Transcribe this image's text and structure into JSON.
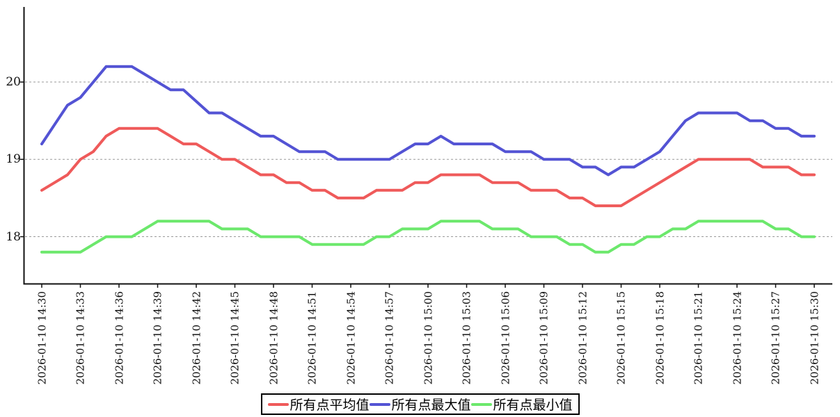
{
  "chart_data": {
    "type": "line",
    "title": "",
    "date": "2026-01-10",
    "grid": "horizontal-dashed",
    "legend_position": "bottom-center",
    "y_ticks": [
      20,
      19,
      18
    ],
    "ylim": [
      17.4,
      21.0
    ],
    "x_times": [
      "14:30",
      "14:31",
      "14:32",
      "14:33",
      "14:34",
      "14:35",
      "14:36",
      "14:37",
      "14:38",
      "14:39",
      "14:40",
      "14:41",
      "14:42",
      "14:43",
      "14:44",
      "14:45",
      "14:46",
      "14:47",
      "14:48",
      "14:49",
      "14:50",
      "14:51",
      "14:52",
      "14:53",
      "14:54",
      "14:55",
      "14:56",
      "14:57",
      "14:58",
      "14:59",
      "15:00",
      "15:01",
      "15:02",
      "15:03",
      "15:04",
      "15:05",
      "15:06",
      "15:07",
      "15:08",
      "15:09",
      "15:10",
      "15:11",
      "15:12",
      "15:13",
      "15:14",
      "15:15",
      "15:16",
      "15:17",
      "15:18",
      "15:19",
      "15:20",
      "15:21",
      "15:22",
      "15:23",
      "15:24",
      "15:25",
      "15:26",
      "15:27",
      "15:28",
      "15:29",
      "15:30"
    ],
    "x_tick_labels": [
      "2026-01-10 14:30",
      "2026-01-10 14:33",
      "2026-01-10 14:36",
      "2026-01-10 14:39",
      "2026-01-10 14:42",
      "2026-01-10 14:45",
      "2026-01-10 14:48",
      "2026-01-10 14:51",
      "2026-01-10 14:54",
      "2026-01-10 14:57",
      "2026-01-10 15:00",
      "2026-01-10 15:03",
      "2026-01-10 15:06",
      "2026-01-10 15:09",
      "2026-01-10 15:12",
      "2026-01-10 15:15",
      "2026-01-10 15:18",
      "2026-01-10 15:21",
      "2026-01-10 15:24",
      "2026-01-10 15:27",
      "2026-01-10 15:30"
    ],
    "series": [
      {
        "key": "avg",
        "name": "所有点平均值",
        "color": "#ef5a5a",
        "values": [
          18.6,
          18.7,
          18.8,
          19.0,
          19.1,
          19.3,
          19.4,
          19.4,
          19.4,
          19.4,
          19.3,
          19.2,
          19.2,
          19.1,
          19.0,
          19.0,
          18.9,
          18.8,
          18.8,
          18.7,
          18.7,
          18.6,
          18.6,
          18.5,
          18.5,
          18.5,
          18.6,
          18.6,
          18.6,
          18.7,
          18.7,
          18.8,
          18.8,
          18.8,
          18.8,
          18.7,
          18.7,
          18.7,
          18.6,
          18.6,
          18.6,
          18.5,
          18.5,
          18.4,
          18.4,
          18.4,
          18.5,
          18.6,
          18.7,
          18.8,
          18.9,
          19.0,
          19.0,
          19.0,
          19.0,
          19.0,
          18.9,
          18.9,
          18.9,
          18.8,
          18.8
        ]
      },
      {
        "key": "max",
        "name": "所有点最大值",
        "color": "#5353d4",
        "values": [
          19.2,
          19.45,
          19.7,
          19.8,
          20.0,
          20.2,
          20.2,
          20.2,
          20.1,
          20.0,
          19.9,
          19.9,
          19.75,
          19.6,
          19.6,
          19.5,
          19.4,
          19.3,
          19.3,
          19.2,
          19.1,
          19.1,
          19.1,
          19.0,
          19.0,
          19.0,
          19.0,
          19.0,
          19.1,
          19.2,
          19.2,
          19.3,
          19.2,
          19.2,
          19.2,
          19.2,
          19.1,
          19.1,
          19.1,
          19.0,
          19.0,
          19.0,
          18.9,
          18.9,
          18.8,
          18.9,
          18.9,
          19.0,
          19.1,
          19.3,
          19.5,
          19.6,
          19.6,
          19.6,
          19.6,
          19.5,
          19.5,
          19.4,
          19.4,
          19.3,
          19.3
        ]
      },
      {
        "key": "min",
        "name": "所有点最小值",
        "color": "#6ce86c",
        "values": [
          17.8,
          17.8,
          17.8,
          17.8,
          17.9,
          18.0,
          18.0,
          18.0,
          18.1,
          18.2,
          18.2,
          18.2,
          18.2,
          18.2,
          18.1,
          18.1,
          18.1,
          18.0,
          18.0,
          18.0,
          18.0,
          17.9,
          17.9,
          17.9,
          17.9,
          17.9,
          18.0,
          18.0,
          18.1,
          18.1,
          18.1,
          18.2,
          18.2,
          18.2,
          18.2,
          18.1,
          18.1,
          18.1,
          18.0,
          18.0,
          18.0,
          17.9,
          17.9,
          17.8,
          17.8,
          17.9,
          17.9,
          18.0,
          18.0,
          18.1,
          18.1,
          18.2,
          18.2,
          18.2,
          18.2,
          18.2,
          18.2,
          18.1,
          18.1,
          18.0,
          18.0
        ]
      }
    ]
  },
  "axes": {
    "axis_color": "#111111",
    "grid_color": "#999999",
    "tick_label_color": "#111111"
  }
}
